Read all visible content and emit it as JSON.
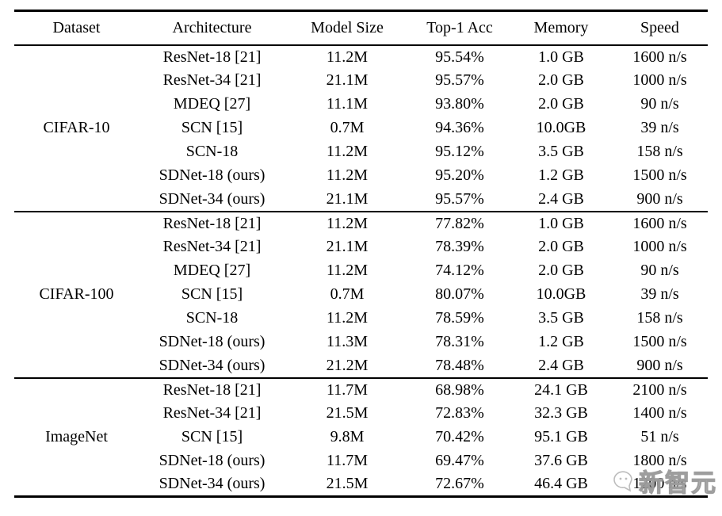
{
  "table": {
    "columns": [
      "Dataset",
      "Architecture",
      "Model Size",
      "Top-1 Acc",
      "Memory",
      "Speed"
    ],
    "sections": [
      {
        "dataset": "CIFAR-10",
        "rows": [
          [
            "ResNet-18 [21]",
            "11.2M",
            "95.54%",
            "1.0 GB",
            "1600 n/s"
          ],
          [
            "ResNet-34 [21]",
            "21.1M",
            "95.57%",
            "2.0 GB",
            "1000 n/s"
          ],
          [
            "MDEQ [27]",
            "11.1M",
            "93.80%",
            "2.0 GB",
            "90 n/s"
          ],
          [
            "SCN [15]",
            "0.7M",
            "94.36%",
            "10.0GB",
            "39 n/s"
          ],
          [
            "SCN-18",
            "11.2M",
            "95.12%",
            "3.5 GB",
            "158 n/s"
          ],
          [
            "SDNet-18 (ours)",
            "11.2M",
            "95.20%",
            "1.2 GB",
            "1500 n/s"
          ],
          [
            "SDNet-34 (ours)",
            "21.1M",
            "95.57%",
            "2.4 GB",
            "900 n/s"
          ]
        ]
      },
      {
        "dataset": "CIFAR-100",
        "rows": [
          [
            "ResNet-18 [21]",
            "11.2M",
            "77.82%",
            "1.0 GB",
            "1600 n/s"
          ],
          [
            "ResNet-34 [21]",
            "21.1M",
            "78.39%",
            "2.0 GB",
            "1000 n/s"
          ],
          [
            "MDEQ [27]",
            "11.2M",
            "74.12%",
            "2.0 GB",
            "90 n/s"
          ],
          [
            "SCN [15]",
            "0.7M",
            "80.07%",
            "10.0GB",
            "39 n/s"
          ],
          [
            "SCN-18",
            "11.2M",
            "78.59%",
            "3.5 GB",
            "158 n/s"
          ],
          [
            "SDNet-18 (ours)",
            "11.3M",
            "78.31%",
            "1.2 GB",
            "1500 n/s"
          ],
          [
            "SDNet-34 (ours)",
            "21.2M",
            "78.48%",
            "2.4 GB",
            "900 n/s"
          ]
        ]
      },
      {
        "dataset": "ImageNet",
        "rows": [
          [
            "ResNet-18 [21]",
            "11.7M",
            "68.98%",
            "24.1 GB",
            "2100 n/s"
          ],
          [
            "ResNet-34 [21]",
            "21.5M",
            "72.83%",
            "32.3 GB",
            "1400 n/s"
          ],
          [
            "SCN [15]",
            "9.8M",
            "70.42%",
            "95.1 GB",
            "51 n/s"
          ],
          [
            "SDNet-18 (ours)",
            "11.7M",
            "69.47%",
            "37.6 GB",
            "1800 n/s"
          ],
          [
            "SDNet-34 (ours)",
            "21.5M",
            "72.67%",
            "46.4 GB",
            "1200 n/s"
          ]
        ]
      }
    ]
  },
  "watermark": {
    "text": "新智元"
  }
}
